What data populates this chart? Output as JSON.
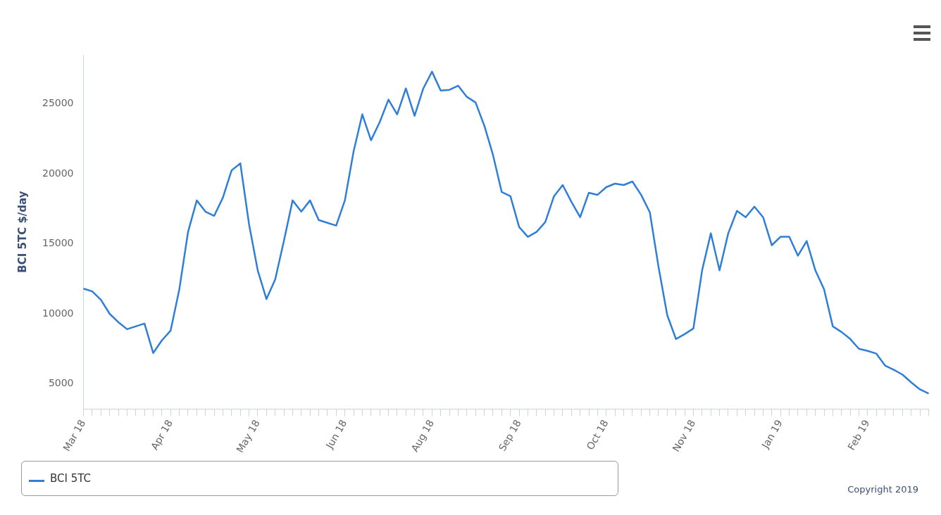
{
  "chart_data": {
    "type": "line",
    "ylabel": "BCI 5TC $/day",
    "categories": [
      "Mar 18",
      null,
      null,
      null,
      null,
      null,
      null,
      null,
      null,
      null,
      "Apr 18",
      null,
      null,
      null,
      null,
      null,
      null,
      null,
      null,
      null,
      "May 18",
      null,
      null,
      null,
      null,
      null,
      null,
      null,
      null,
      null,
      "Jun 18",
      null,
      null,
      null,
      null,
      null,
      null,
      null,
      null,
      null,
      "Aug 18",
      null,
      null,
      null,
      null,
      null,
      null,
      null,
      null,
      null,
      "Sep 18",
      null,
      null,
      null,
      null,
      null,
      null,
      null,
      null,
      null,
      "Oct 18",
      null,
      null,
      null,
      null,
      null,
      null,
      null,
      null,
      null,
      "Nov 18",
      null,
      null,
      null,
      null,
      null,
      null,
      null,
      null,
      null,
      "Jan 19",
      null,
      null,
      null,
      null,
      null,
      null,
      null,
      null,
      null,
      "Feb 19",
      null,
      null,
      null,
      null,
      null,
      null,
      null
    ],
    "series": [
      {
        "name": "BCI 5TC",
        "color": "#2f7ed8",
        "values": [
          11800,
          11600,
          11000,
          10000,
          9400,
          8900,
          9100,
          9300,
          7200,
          8100,
          8800,
          11750,
          15850,
          18100,
          17300,
          17000,
          18300,
          20250,
          20750,
          16400,
          13100,
          11050,
          12450,
          15200,
          18100,
          17300,
          18100,
          16700,
          16500,
          16300,
          18100,
          21600,
          24250,
          22400,
          23700,
          25300,
          24250,
          26100,
          24150,
          26100,
          27300,
          25950,
          26000,
          26300,
          25500,
          25100,
          23450,
          21350,
          18700,
          18400,
          16200,
          15500,
          15850,
          16550,
          18400,
          19200,
          18000,
          16900,
          18650,
          18500,
          19050,
          19300,
          19200,
          19450,
          18500,
          17250,
          13350,
          9900,
          8200,
          8550,
          8950,
          13100,
          15750,
          13100,
          15750,
          17350,
          16900,
          17650,
          16900,
          14900,
          15500,
          15500,
          14150,
          15200,
          13100,
          11750,
          9100,
          8700,
          8200,
          7500,
          7350,
          7150,
          6300,
          6000,
          5650,
          5100,
          4600,
          4300
        ]
      }
    ],
    "ylim": [
      3200,
      28500
    ],
    "yticks": [
      5000,
      10000,
      15000,
      20000,
      25000
    ],
    "grid": false,
    "legend": "bottom left",
    "marker": "none",
    "line_style": "solid",
    "annotations": [
      "Copyright 2019"
    ]
  }
}
